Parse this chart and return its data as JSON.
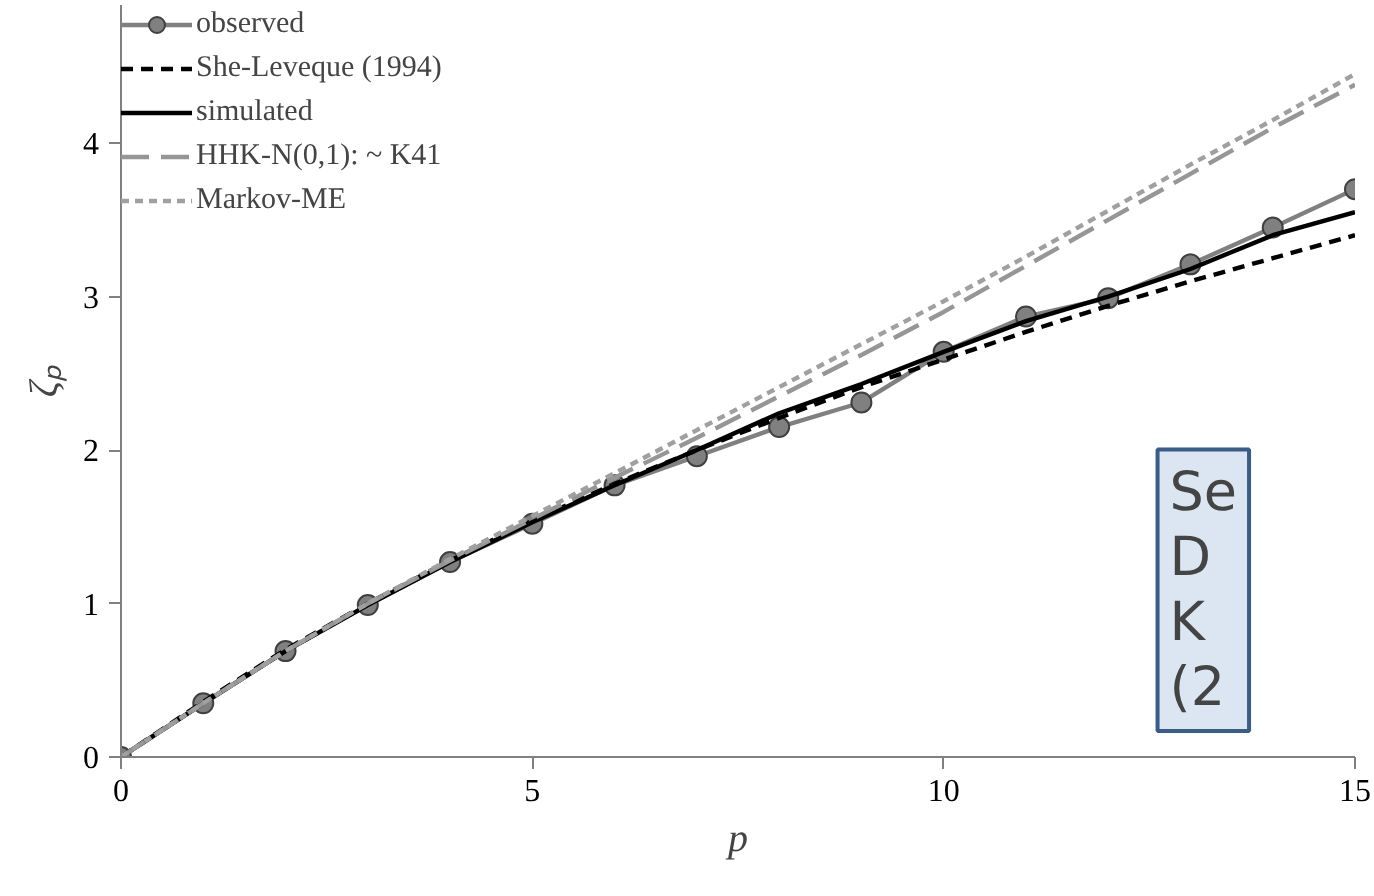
{
  "chart_data": {
    "type": "line",
    "xlabel": "p",
    "ylabel": "ζₚ",
    "xlim": [
      0,
      15
    ],
    "xticks": [
      0,
      5,
      10,
      15
    ],
    "ylim": [
      0,
      4.9
    ],
    "yticks": [
      0,
      1,
      2,
      3,
      4
    ],
    "x": [
      0,
      1,
      2,
      3,
      4,
      5,
      6,
      7,
      8,
      9,
      10,
      11,
      12,
      13,
      14,
      15
    ],
    "series": [
      {
        "name": "observed",
        "color": "#808080",
        "marker": "circle",
        "line_style": "solid",
        "values": [
          0,
          0.35,
          0.69,
          0.99,
          1.27,
          1.52,
          1.77,
          1.96,
          2.15,
          2.31,
          2.64,
          2.87,
          2.99,
          3.21,
          3.45,
          3.7
        ]
      },
      {
        "name": "She-Leveque (1994)",
        "color": "#000000",
        "marker": "none",
        "line_style": "dashed",
        "values": [
          0,
          0.36,
          0.7,
          1.0,
          1.28,
          1.54,
          1.78,
          2.0,
          2.21,
          2.41,
          2.59,
          2.77,
          2.94,
          3.1,
          3.25,
          3.4
        ]
      },
      {
        "name": "simulated",
        "color": "#000000",
        "marker": "none",
        "line_style": "solid",
        "values": [
          0,
          0.35,
          0.69,
          0.99,
          1.27,
          1.53,
          1.77,
          2.0,
          2.24,
          2.43,
          2.64,
          2.84,
          3.0,
          3.18,
          3.4,
          3.55
        ]
      },
      {
        "name": "HHK-N(0,1): ~ K41",
        "color": "#969696",
        "marker": "none",
        "line_style": "longdash",
        "values": [
          0,
          0.35,
          0.69,
          1.0,
          1.28,
          1.55,
          1.82,
          2.08,
          2.35,
          2.62,
          2.9,
          3.2,
          3.5,
          3.8,
          4.1,
          4.38
        ]
      },
      {
        "name": "Markov-ME",
        "color": "#a0a0a0",
        "marker": "none",
        "line_style": "dotted",
        "values": [
          0,
          0.35,
          0.69,
          1.0,
          1.29,
          1.57,
          1.85,
          2.13,
          2.41,
          2.69,
          2.97,
          3.26,
          3.56,
          3.86,
          4.15,
          4.45
        ]
      }
    ],
    "annotations": [
      "Se\nD\nK\n(2"
    ],
    "grid": false,
    "legend": "top left"
  }
}
